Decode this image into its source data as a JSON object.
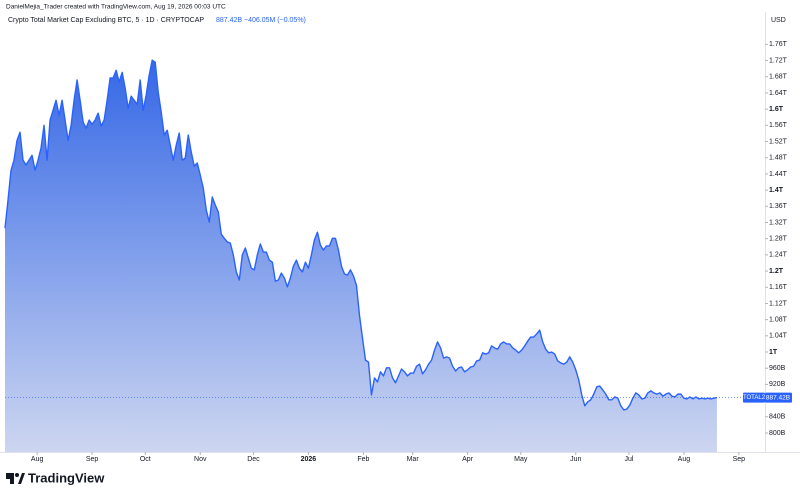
{
  "header": {
    "attribution": "DanielMejia_Trader created with TradingView.com, Aug 19, 2026 00:03 UTC"
  },
  "footer": {
    "brand": "TradingView"
  },
  "chart_data": {
    "type": "area",
    "title": "Crypto Total Market Cap Excluding BTC, 5 · 1D · CRYPTOCAP",
    "last_label": "887.42B",
    "change_label": "−406.05M (−0.05%)",
    "currency": "USD",
    "grid": false,
    "xlim": [
      0,
      253
    ],
    "ylim": [
      753,
      1840
    ],
    "xticks": [
      {
        "value": 10.7,
        "label": "Aug"
      },
      {
        "value": 29,
        "label": "Sep"
      },
      {
        "value": 46.7,
        "label": "Oct"
      },
      {
        "value": 65,
        "label": "Nov"
      },
      {
        "value": 82.7,
        "label": "Dec"
      },
      {
        "value": 101,
        "label": "2026"
      },
      {
        "value": 119.3,
        "label": "Feb"
      },
      {
        "value": 135.7,
        "label": "Mar"
      },
      {
        "value": 154,
        "label": "Apr"
      },
      {
        "value": 171.7,
        "label": "May"
      },
      {
        "value": 190,
        "label": "Jun"
      },
      {
        "value": 207.7,
        "label": "Jul"
      },
      {
        "value": 226,
        "label": "Aug"
      },
      {
        "value": 244.3,
        "label": "Sep"
      }
    ],
    "yticks": [
      {
        "value": 1760,
        "label": "1.76T"
      },
      {
        "value": 1720,
        "label": "1.72T"
      },
      {
        "value": 1680,
        "label": "1.68T"
      },
      {
        "value": 1640,
        "label": "1.64T"
      },
      {
        "value": 1600,
        "label": "1.6T"
      },
      {
        "value": 1560,
        "label": "1.56T"
      },
      {
        "value": 1520,
        "label": "1.52T"
      },
      {
        "value": 1480,
        "label": "1.48T"
      },
      {
        "value": 1440,
        "label": "1.44T"
      },
      {
        "value": 1400,
        "label": "1.4T"
      },
      {
        "value": 1360,
        "label": "1.36T"
      },
      {
        "value": 1320,
        "label": "1.32T"
      },
      {
        "value": 1280,
        "label": "1.28T"
      },
      {
        "value": 1240,
        "label": "1.24T"
      },
      {
        "value": 1200,
        "label": "1.2T"
      },
      {
        "value": 1160,
        "label": "1.16T"
      },
      {
        "value": 1120,
        "label": "1.12T"
      },
      {
        "value": 1080,
        "label": "1.08T"
      },
      {
        "value": 1040,
        "label": "1.04T"
      },
      {
        "value": 1000,
        "label": "1T"
      },
      {
        "value": 960,
        "label": "960B"
      },
      {
        "value": 920,
        "label": "920B"
      },
      {
        "value": 840,
        "label": "840B"
      },
      {
        "value": 800,
        "label": "800B"
      }
    ],
    "series": [
      {
        "name": "TOTAL2",
        "color": "#2962ff",
        "x": [
          0,
          1,
          2,
          3,
          4,
          5,
          6,
          7,
          8,
          9,
          10,
          11,
          12,
          13,
          14,
          15,
          16,
          17,
          18,
          19,
          20,
          21,
          22,
          23,
          24,
          25,
          26,
          27,
          28,
          29,
          30,
          31,
          32,
          33,
          34,
          35,
          36,
          37,
          38,
          39,
          40,
          41,
          42,
          43,
          44,
          45,
          46,
          47,
          48,
          49,
          50,
          51,
          52,
          53,
          54,
          55,
          56,
          57,
          58,
          59,
          60,
          61,
          62,
          63,
          64,
          65,
          66,
          67,
          68,
          69,
          70,
          71,
          72,
          73,
          74,
          75,
          76,
          77,
          78,
          79,
          80,
          81,
          82,
          83,
          84,
          85,
          86,
          87,
          88,
          89,
          90,
          91,
          92,
          93,
          94,
          95,
          96,
          97,
          98,
          99,
          100,
          101,
          102,
          103,
          104,
          105,
          106,
          107,
          108,
          109,
          110,
          111,
          112,
          113,
          114,
          115,
          116,
          117,
          118,
          119,
          120,
          121,
          122,
          123,
          124,
          125,
          126,
          127,
          128,
          129,
          130,
          131,
          132,
          133,
          134,
          135,
          136,
          137,
          138,
          139,
          140,
          141,
          142,
          143,
          144,
          145,
          146,
          147,
          148,
          149,
          150,
          151,
          152,
          153,
          154,
          155,
          156,
          157,
          158,
          159,
          160,
          161,
          162,
          163,
          164,
          165,
          166,
          167,
          168,
          169,
          170,
          171,
          172,
          173,
          174,
          175,
          176,
          177,
          178,
          179,
          180,
          181,
          182,
          183,
          184,
          185,
          186,
          187,
          188,
          189,
          190,
          191,
          192,
          193,
          194,
          195,
          196,
          197,
          198,
          199,
          200,
          201,
          202,
          203,
          204,
          205,
          206,
          207,
          208,
          209,
          210,
          211,
          212,
          213,
          214,
          215,
          216,
          217,
          218,
          219,
          220,
          221,
          222,
          223,
          224,
          225,
          226,
          227,
          228,
          229,
          230,
          231,
          232,
          233,
          234,
          235,
          236,
          237
        ],
        "values": [
          1306,
          1375,
          1449,
          1474,
          1523,
          1543,
          1474,
          1462,
          1474,
          1486,
          1449,
          1474,
          1504,
          1560,
          1474,
          1573,
          1597,
          1622,
          1585,
          1622,
          1573,
          1523,
          1560,
          1622,
          1672,
          1622,
          1568,
          1553,
          1573,
          1563,
          1573,
          1590,
          1558,
          1573,
          1622,
          1677,
          1677,
          1696,
          1667,
          1691,
          1652,
          1602,
          1632,
          1622,
          1612,
          1672,
          1597,
          1635,
          1684,
          1721,
          1716,
          1642,
          1593,
          1536,
          1548,
          1511,
          1474,
          1511,
          1541,
          1474,
          1479,
          1536,
          1494,
          1459,
          1467,
          1437,
          1405,
          1351,
          1321,
          1383,
          1363,
          1346,
          1291,
          1281,
          1272,
          1269,
          1240,
          1198,
          1178,
          1240,
          1257,
          1232,
          1207,
          1203,
          1240,
          1267,
          1247,
          1247,
          1227,
          1222,
          1175,
          1178,
          1195,
          1183,
          1161,
          1183,
          1212,
          1227,
          1207,
          1198,
          1222,
          1207,
          1240,
          1277,
          1296,
          1264,
          1252,
          1262,
          1262,
          1281,
          1281,
          1252,
          1212,
          1193,
          1190,
          1203,
          1188,
          1165,
          1091,
          1035,
          980,
          975,
          894,
          936,
          926,
          951,
          941,
          961,
          961,
          936,
          924,
          941,
          958,
          951,
          941,
          948,
          948,
          965,
          970,
          946,
          956,
          970,
          980,
          1005,
          1025,
          1010,
          985,
          988,
          985,
          965,
          953,
          961,
          963,
          951,
          956,
          963,
          965,
          978,
          980,
          998,
          995,
          998,
          1015,
          1010,
          1007,
          1020,
          1025,
          1020,
          1020,
          1010,
          1005,
          998,
          1005,
          1015,
          1027,
          1037,
          1037,
          1045,
          1054,
          1025,
          1007,
          998,
          1000,
          995,
          978,
          973,
          970,
          975,
          988,
          975,
          956,
          931,
          894,
          867,
          877,
          882,
          896,
          914,
          916,
          906,
          896,
          882,
          882,
          889,
          886,
          867,
          857,
          859,
          869,
          886,
          899,
          894,
          884,
          886,
          899,
          904,
          899,
          896,
          899,
          891,
          896,
          899,
          891,
          889,
          896,
          896,
          886,
          884,
          889,
          884,
          889,
          884,
          886,
          884,
          886,
          884,
          886,
          887.42
        ]
      }
    ]
  }
}
